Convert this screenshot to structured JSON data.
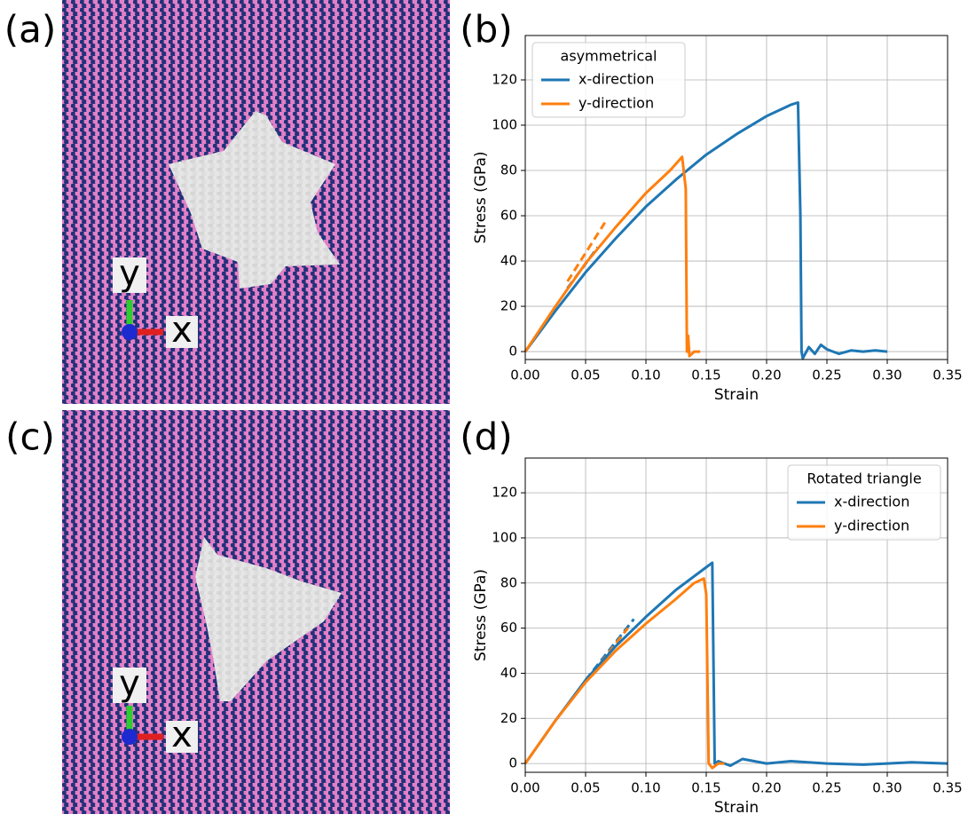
{
  "images": [
    {
      "label": "(a)",
      "axis_y": "y",
      "axis_x": "x"
    },
    {
      "label": "(c)",
      "axis_y": "y",
      "axis_x": "x"
    }
  ],
  "chart_data": [
    {
      "type": "line",
      "panel_label": "(b)",
      "xlabel": "Strain",
      "ylabel": "Stress (GPa)",
      "xlim": [
        0,
        0.35
      ],
      "ylim": [
        -3.5,
        139.6
      ],
      "xticks": [
        {
          "value": 0,
          "label": "0.00"
        },
        {
          "value": 0.05,
          "label": "0.05"
        },
        {
          "value": 0.1,
          "label": "0.10"
        },
        {
          "value": 0.15,
          "label": "0.15"
        },
        {
          "value": 0.2,
          "label": "0.20"
        },
        {
          "value": 0.25,
          "label": "0.25"
        },
        {
          "value": 0.3,
          "label": "0.30"
        },
        {
          "value": 0.35,
          "label": "0.35"
        }
      ],
      "yticks": [
        0,
        20,
        40,
        60,
        80,
        100,
        120
      ],
      "grid": true,
      "legend_title": "asymmetrical",
      "legend": "upper left",
      "series": [
        {
          "name": "x-direction",
          "color": "#1f77b4",
          "x": [
            0,
            0.025,
            0.05,
            0.075,
            0.1,
            0.125,
            0.15,
            0.175,
            0.2,
            0.22,
            0.226,
            0.228,
            0.229,
            0.23,
            0.235,
            0.24,
            0.245,
            0.25,
            0.26,
            0.27,
            0.28,
            0.29,
            0.3
          ],
          "values": [
            0,
            18,
            35,
            50,
            64,
            76,
            87,
            96,
            104,
            109,
            110,
            60,
            0,
            -3,
            2,
            -1,
            3,
            1,
            -1,
            0.5,
            0,
            0.5,
            0
          ]
        },
        {
          "name": "y-direction",
          "color": "#ff7f0e",
          "x": [
            0,
            0.025,
            0.05,
            0.075,
            0.1,
            0.12,
            0.13,
            0.133,
            0.134,
            0.135,
            0.136,
            0.14,
            0.145
          ],
          "values": [
            0,
            20,
            39,
            55,
            70,
            80,
            86,
            72,
            0,
            7,
            -2,
            0,
            0
          ]
        }
      ],
      "fits": [
        {
          "color": "#1f77b4",
          "x": [
            0.035,
            0.06
          ],
          "values": [
            28,
            46
          ]
        },
        {
          "color": "#ff7f0e",
          "x": [
            0.035,
            0.066
          ],
          "values": [
            31,
            57
          ]
        }
      ]
    },
    {
      "type": "line",
      "panel_label": "(d)",
      "xlabel": "Strain",
      "ylabel": "Stress (GPa)",
      "xlim": [
        0,
        0.35
      ],
      "ylim": [
        -3.9,
        135.4
      ],
      "xticks": [
        {
          "value": 0,
          "label": "0.00"
        },
        {
          "value": 0.05,
          "label": "0.05"
        },
        {
          "value": 0.1,
          "label": "0.10"
        },
        {
          "value": 0.15,
          "label": "0.15"
        },
        {
          "value": 0.2,
          "label": "0.20"
        },
        {
          "value": 0.25,
          "label": "0.25"
        },
        {
          "value": 0.3,
          "label": "0.30"
        },
        {
          "value": 0.35,
          "label": "0.35"
        }
      ],
      "yticks": [
        0,
        20,
        40,
        60,
        80,
        100,
        120
      ],
      "grid": true,
      "legend_title": "Rotated triangle",
      "legend": "upper right",
      "series": [
        {
          "name": "x-direction",
          "color": "#1f77b4",
          "x": [
            0,
            0.025,
            0.05,
            0.075,
            0.1,
            0.125,
            0.15,
            0.155,
            0.157,
            0.16,
            0.17,
            0.18,
            0.2,
            0.22,
            0.25,
            0.28,
            0.3,
            0.32,
            0.35
          ],
          "values": [
            0,
            19,
            37,
            52,
            65,
            77,
            87,
            89,
            0,
            1,
            -1,
            2,
            0,
            1,
            0,
            -0.5,
            0,
            0.5,
            0
          ]
        },
        {
          "name": "y-direction",
          "color": "#ff7f0e",
          "x": [
            0,
            0.025,
            0.05,
            0.075,
            0.1,
            0.125,
            0.14,
            0.148,
            0.15,
            0.152,
            0.155,
            0.16,
            0.165
          ],
          "values": [
            0,
            19,
            36,
            50,
            62,
            73,
            80,
            82,
            75,
            0,
            -2,
            0,
            0
          ]
        }
      ],
      "fits": [
        {
          "color": "#1f77b4",
          "x": [
            0.05,
            0.09
          ],
          "values": [
            37,
            64
          ]
        },
        {
          "color": "#ff7f0e",
          "x": [
            0.05,
            0.085
          ],
          "values": [
            36,
            60
          ]
        }
      ]
    }
  ]
}
